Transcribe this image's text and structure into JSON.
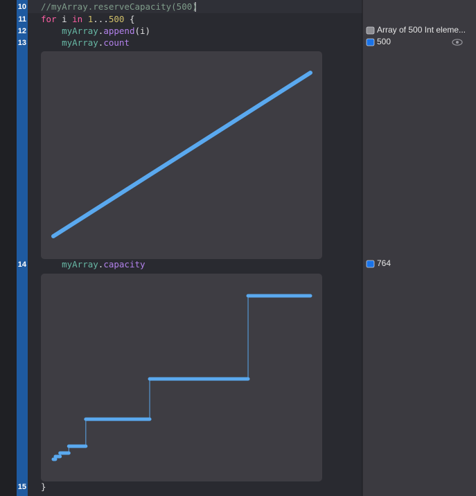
{
  "editor": {
    "lines": [
      {
        "number": 10,
        "tokens": [
          {
            "text": "//myArray.reserveCapacity(500)",
            "color": "#7f9c8a"
          }
        ]
      },
      {
        "number": 11,
        "tokens": [
          {
            "text": "for",
            "color": "#fc5fa3"
          },
          {
            "text": " i ",
            "color": "#dfdfe0"
          },
          {
            "text": "in",
            "color": "#fc5fa3"
          },
          {
            "text": " 1",
            "color": "#d0bf69"
          },
          {
            "text": "...",
            "color": "#dfdfe0"
          },
          {
            "text": "500",
            "color": "#d0bf69"
          },
          {
            "text": " {",
            "color": "#dfdfe0"
          }
        ]
      },
      {
        "number": 12,
        "tokens": [
          {
            "text": "    myArray",
            "color": "#67b7a4"
          },
          {
            "text": ".",
            "color": "#dfdfe0"
          },
          {
            "text": "append",
            "color": "#b281eb"
          },
          {
            "text": "(i)",
            "color": "#dfdfe0"
          }
        ]
      },
      {
        "number": 13,
        "tokens": [
          {
            "text": "    myArray",
            "color": "#67b7a4"
          },
          {
            "text": ".",
            "color": "#dfdfe0"
          },
          {
            "text": "count",
            "color": "#b281eb"
          }
        ]
      },
      {
        "number": 14,
        "tokens": [
          {
            "text": "    myArray",
            "color": "#67b7a4"
          },
          {
            "text": ".",
            "color": "#dfdfe0"
          },
          {
            "text": "capacity",
            "color": "#b281eb"
          }
        ]
      },
      {
        "number": 15,
        "tokens": [
          {
            "text": "}",
            "color": "#dfdfe0"
          }
        ]
      }
    ]
  },
  "results": [
    {
      "text": "Array of 500 Int eleme...",
      "icon_color": "#8e8e93"
    },
    {
      "text": "500",
      "icon_color": "#1a73e8"
    },
    {
      "text": "764",
      "icon_color": "#1a73e8"
    }
  ],
  "chart_data": [
    {
      "type": "line",
      "x": [
        1,
        500
      ],
      "values": [
        1,
        500
      ],
      "xlim": [
        1,
        500
      ],
      "ylim": [
        1,
        500
      ],
      "color": "#5aa9ef"
    },
    {
      "type": "step",
      "x": [
        1,
        5,
        14,
        31,
        64,
        188,
        379
      ],
      "values": [
        1,
        14,
        30,
        62,
        188,
        376,
        764
      ],
      "xlim": [
        1,
        500
      ],
      "ylim": [
        1,
        764
      ],
      "color": "#5aa9ef"
    }
  ]
}
